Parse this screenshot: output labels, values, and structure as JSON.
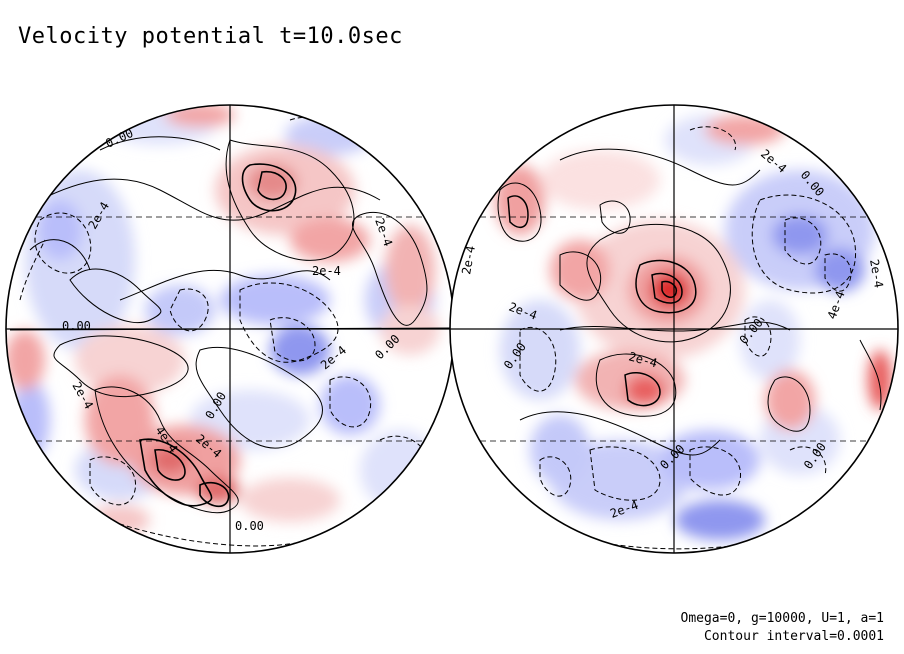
{
  "title": "Velocity potential t=10.0sec",
  "footer": {
    "params": "Omega=0, g=10000, U=1, a=1",
    "interval": "Contour interval=0.0001"
  },
  "colors": {
    "positive_light": "#fbe1e1",
    "positive_mid": "#f2a5a5",
    "positive_strong": "#e85f5f",
    "positive_core": "#dd2a2a",
    "negative_light": "#e6e8fb",
    "negative_mid": "#b9befa",
    "negative_strong": "#7d86ee",
    "negative_core": "#4a55e0",
    "lines": "#000000"
  },
  "contour_labels_left": [
    "0.00",
    "2e-4",
    "0.00",
    "2e-4",
    "0.00",
    "2e-4",
    "0.00",
    "2e-4",
    "4e-4",
    "2e-4",
    "0.00",
    "2e-4",
    "0.00",
    "2e-4"
  ],
  "contour_labels_right": [
    "2e-4",
    "0.00",
    "2e-4",
    "0.00",
    "2e-4",
    "0.00",
    "2e-4",
    "0.00",
    "4e-4",
    "2e-4",
    "0.00",
    "2e-4"
  ]
}
